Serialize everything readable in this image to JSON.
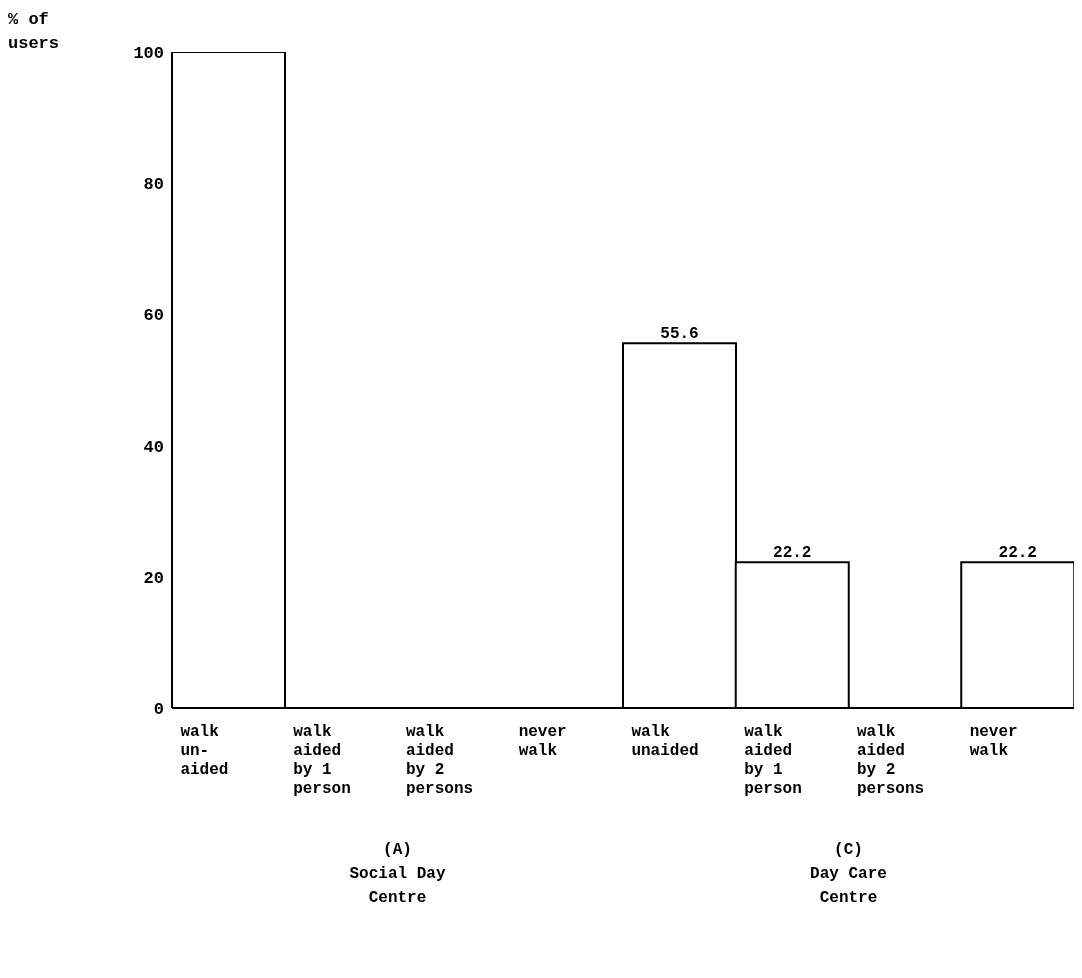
{
  "chart_data": {
    "type": "bar",
    "ylabel": "% of\nusers",
    "categories": [
      "walk\nun-\naided",
      "walk\naided\nby 1\nperson",
      "walk\naided\nby 2\npersons",
      "never\nwalk",
      "walk\nunaided",
      "walk\naided\nby 1\nperson",
      "walk\naided\nby 2\npersons",
      "never\nwalk"
    ],
    "values": [
      100,
      0,
      0,
      0,
      55.6,
      22.2,
      0,
      22.2
    ],
    "value_labels": [
      null,
      null,
      null,
      null,
      "55.6",
      "22.2",
      null,
      "22.2"
    ],
    "color": "#ffffff",
    "ylim": [
      0,
      100
    ],
    "yticks": [
      0,
      20,
      40,
      60,
      80,
      100
    ],
    "grid": false,
    "legend": false,
    "annotations": [
      "(A)\nSocial Day\nCentre",
      "(C)\nDay Care\nCentre"
    ]
  }
}
